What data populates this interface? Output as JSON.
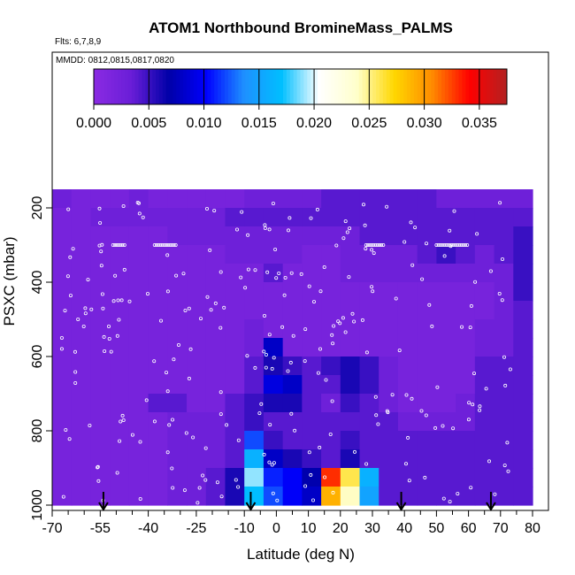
{
  "chart_data": {
    "type": "heatmap",
    "title": "ATOM1 Northbound BromineMass_PALMS",
    "flights_label": "Flts: 6,7,8,9",
    "dates_label": "MMDD: 0812,0815,0817,0820",
    "xlabel": "Latitude (deg N)",
    "ylabel": "PSXC (mbar)",
    "xlim": [
      -70,
      80
    ],
    "ylim": [
      1000,
      150
    ],
    "x_ticks": [
      "-70",
      "-55",
      "-40",
      "-25",
      "-10",
      "0",
      "10",
      "20",
      "30",
      "40",
      "50",
      "60",
      "70",
      "80"
    ],
    "x_tick_values": [
      -70,
      -55,
      -40,
      -25,
      -10,
      0,
      10,
      20,
      30,
      40,
      50,
      60,
      70,
      80
    ],
    "x_minor_ticks": [
      -65,
      -60,
      -50,
      -45,
      -35,
      -30,
      -20,
      -15,
      -5,
      5,
      15,
      25,
      35,
      45,
      55,
      65,
      75
    ],
    "y_ticks": [
      "200",
      "400",
      "600",
      "800",
      "1000"
    ],
    "y_tick_values": [
      200,
      400,
      600,
      800,
      1000
    ],
    "colorbar": {
      "min": 0.0,
      "max": 0.0375,
      "ticks": [
        "0.000",
        "0.005",
        "0.010",
        "0.015",
        "0.020",
        "0.025",
        "0.030",
        "0.035"
      ],
      "tick_values": [
        0,
        0.005,
        0.01,
        0.015,
        0.02,
        0.025,
        0.03,
        0.035
      ],
      "colors": [
        "#8a2be2",
        "#6a1ed8",
        "#0000a8",
        "#0000ff",
        "#1e90ff",
        "#00bfff",
        "#ffffff",
        "#ffffcc",
        "#ffd700",
        "#ff8c00",
        "#ff0000",
        "#b22222"
      ]
    },
    "lat_centers": [
      -67,
      -61,
      -55,
      -49,
      -43,
      -37,
      -31,
      -25,
      -19,
      -13,
      -7,
      -1,
      5,
      11,
      17,
      23,
      29,
      35,
      41,
      47,
      53,
      59,
      65,
      71,
      77
    ],
    "pressure_centers": [
      175,
      225,
      275,
      325,
      375,
      425,
      475,
      525,
      575,
      625,
      675,
      725,
      775,
      825,
      875,
      925,
      975
    ],
    "values": [
      [
        0.003,
        0.002,
        0.002,
        0.002,
        0.003,
        0.002,
        0.002,
        0.002,
        0.002,
        0.002,
        0.003,
        0.003,
        0.003,
        0.003,
        0.004,
        0.004,
        0.004,
        0.004,
        0.004,
        0.004,
        0.003,
        0.003,
        0.003,
        0.003,
        0.003
      ],
      [
        0.002,
        0.002,
        0.003,
        0.003,
        0.003,
        0.003,
        0.003,
        0.003,
        0.003,
        0.004,
        0.004,
        0.004,
        0.004,
        0.004,
        0.004,
        0.004,
        0.004,
        0.004,
        0.004,
        0.004,
        0.004,
        0.004,
        0.004,
        0.004,
        0.004
      ],
      [
        0.002,
        0.002,
        0.002,
        0.002,
        0.002,
        0.002,
        0.003,
        0.003,
        0.003,
        0.003,
        0.003,
        0.003,
        0.003,
        0.003,
        0.003,
        0.003,
        0.004,
        0.004,
        0.004,
        0.004,
        0.004,
        0.004,
        0.004,
        0.004,
        0.005
      ],
      [
        0.002,
        0.002,
        0.002,
        0.002,
        0.002,
        0.002,
        0.002,
        0.002,
        0.002,
        0.003,
        0.003,
        0.003,
        0.003,
        0.002,
        0.002,
        0.003,
        0.003,
        0.003,
        0.003,
        0.004,
        0.005,
        0.004,
        0.003,
        0.004,
        0.005
      ],
      [
        0.002,
        0.002,
        0.002,
        0.002,
        0.002,
        0.002,
        0.002,
        0.002,
        0.002,
        0.002,
        0.002,
        0.004,
        0.002,
        0.002,
        0.002,
        0.003,
        0.003,
        0.003,
        0.003,
        0.003,
        0.003,
        0.003,
        0.003,
        0.003,
        0.005
      ],
      [
        0.002,
        0.002,
        0.002,
        0.002,
        0.002,
        0.002,
        0.002,
        0.002,
        0.002,
        0.002,
        0.002,
        0.002,
        0.002,
        0.002,
        0.002,
        0.002,
        0.002,
        0.002,
        0.002,
        0.002,
        0.002,
        0.002,
        0.002,
        0.003,
        0.005
      ],
      [
        0.002,
        0.002,
        0.002,
        0.002,
        0.002,
        0.002,
        0.002,
        0.002,
        0.002,
        0.002,
        0.002,
        0.002,
        0.002,
        0.002,
        0.002,
        0.002,
        0.002,
        0.002,
        0.002,
        0.002,
        0.002,
        0.002,
        0.002,
        0.003,
        0.004
      ],
      [
        0.002,
        0.002,
        0.002,
        0.002,
        0.002,
        0.002,
        0.002,
        0.002,
        0.002,
        0.002,
        0.003,
        0.002,
        0.002,
        0.002,
        0.002,
        0.002,
        0.002,
        0.002,
        0.002,
        0.002,
        0.002,
        0.002,
        0.003,
        0.003,
        0.004
      ],
      [
        0.002,
        0.002,
        0.002,
        0.002,
        0.002,
        0.002,
        0.002,
        0.002,
        0.002,
        0.002,
        0.003,
        0.008,
        0.002,
        0.002,
        0.002,
        0.002,
        0.002,
        0.002,
        0.002,
        0.002,
        0.002,
        0.002,
        0.003,
        0.003,
        0.004
      ],
      [
        0.002,
        0.002,
        0.002,
        0.002,
        0.002,
        0.002,
        0.002,
        0.002,
        0.002,
        0.002,
        0.004,
        0.006,
        0.005,
        0.004,
        0.005,
        0.006,
        0.005,
        0.003,
        0.002,
        0.002,
        0.002,
        0.002,
        0.004,
        0.004,
        0.004
      ],
      [
        0.002,
        0.002,
        0.002,
        0.002,
        0.002,
        0.002,
        0.002,
        0.002,
        0.002,
        0.002,
        0.004,
        0.009,
        0.008,
        0.004,
        0.004,
        0.006,
        0.005,
        0.003,
        0.002,
        0.002,
        0.002,
        0.002,
        0.004,
        0.004,
        0.004
      ],
      [
        0.002,
        0.002,
        0.002,
        0.002,
        0.002,
        0.004,
        0.004,
        0.002,
        0.002,
        0.004,
        0.005,
        0.006,
        0.006,
        0.004,
        0.003,
        0.005,
        0.004,
        0.003,
        0.002,
        0.002,
        0.002,
        0.003,
        0.004,
        0.004,
        0.004
      ],
      [
        0.002,
        0.002,
        0.002,
        0.002,
        0.002,
        0.002,
        0.003,
        0.003,
        0.003,
        0.004,
        0.005,
        0.004,
        0.004,
        0.004,
        0.004,
        0.004,
        0.004,
        0.004,
        0.003,
        0.003,
        0.003,
        0.003,
        0.004,
        0.004,
        0.004
      ],
      [
        0.002,
        0.002,
        0.002,
        0.002,
        0.002,
        0.002,
        0.003,
        0.003,
        0.003,
        0.004,
        0.012,
        0.005,
        0.004,
        0.004,
        0.004,
        0.005,
        0.004,
        0.004,
        0.004,
        0.004,
        0.004,
        0.004,
        0.004,
        0.004,
        0.004
      ],
      [
        0.002,
        0.002,
        0.002,
        0.002,
        0.002,
        0.002,
        0.003,
        0.003,
        0.003,
        0.004,
        0.016,
        0.008,
        0.006,
        0.005,
        0.004,
        0.006,
        0.004,
        0.004,
        0.004,
        0.004,
        0.004,
        0.004,
        0.004,
        0.004,
        0.004
      ],
      [
        0.002,
        0.002,
        0.002,
        0.002,
        0.002,
        0.002,
        0.003,
        0.003,
        0.004,
        0.006,
        0.019,
        0.011,
        0.01,
        0.007,
        0.033,
        0.026,
        0.016,
        0.004,
        0.004,
        0.004,
        0.004,
        0.004,
        0.004,
        0.004,
        0.004
      ],
      [
        0.002,
        0.002,
        0.002,
        0.002,
        0.002,
        0.002,
        0.003,
        0.003,
        0.004,
        0.006,
        0.017,
        0.012,
        0.01,
        0.008,
        0.029,
        0.024,
        0.015,
        0.004,
        0.004,
        0.004,
        0.004,
        0.004,
        0.004,
        0.004,
        0.004
      ]
    ],
    "arrow_latitudes": [
      -54,
      -8,
      39,
      67
    ]
  }
}
